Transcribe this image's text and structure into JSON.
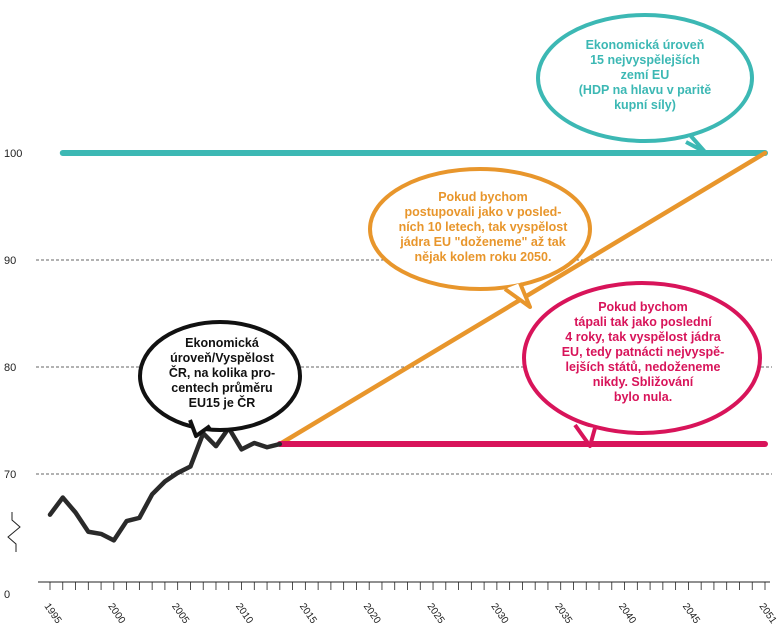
{
  "chart_data": {
    "type": "line",
    "yticks": [
      "0",
      "70",
      "80",
      "90",
      "100"
    ],
    "xticks": [
      "1995",
      "2000",
      "2005",
      "2010",
      "2015",
      "2020",
      "2025",
      "2030",
      "2035",
      "2040",
      "2045",
      "2051"
    ],
    "xlim": [
      1995,
      2051
    ],
    "grid": "dashed horizontal at 70, 80, 90",
    "axis_break": true,
    "series": [
      {
        "color": "#2a2a2a",
        "x": [
          1995,
          1996,
          1997,
          1998,
          1999,
          2000,
          2001,
          2002,
          2003,
          2004,
          2005,
          2006,
          2007,
          2008,
          2009,
          2010,
          2011,
          2012,
          2013
        ],
        "y": [
          66.2,
          67.8,
          66.4,
          64.6,
          64.4,
          63.8,
          65.6,
          65.9,
          68.1,
          69.3,
          70.1,
          70.7,
          73.8,
          72.6,
          74.3,
          72.3,
          72.9,
          72.5,
          72.8
        ]
      },
      {
        "color": "#e8962c",
        "x": [
          2013,
          2051
        ],
        "y": [
          72.8,
          100
        ]
      },
      {
        "color": "#d8145a",
        "x": [
          2013,
          2051
        ],
        "y": [
          72.8,
          72.8
        ]
      },
      {
        "color": "#3cb8b4",
        "x": [
          1996,
          2051
        ],
        "y": [
          100,
          100
        ]
      }
    ],
    "annotations": [
      {
        "id": "teal",
        "text": "Ekonomická úroveň\n15 nejvyspělejších\nzemí EU\n(HDP na hlavu v paritě\nkupní síly)",
        "color": "#3cb8b4"
      },
      {
        "id": "orange",
        "text": "Pokud bychom\npostupovali jako v posled-\nních 10 letech, tak vyspělost\njádra EU \"doženeme\" až tak\nnějak kolem roku 2050.",
        "color": "#e8962c"
      },
      {
        "id": "pink",
        "text": "Pokud bychom\ntápali tak jako poslední\n4 roky, tak vyspělost jádra\nEU, tedy patnácti nejvyspě-\nlejších států, nedoženeme\nnikdy. Sbližování\nbylo nula.",
        "color": "#d8145a"
      },
      {
        "id": "black",
        "text": "Ekonomická\núroveň/Vyspělost\nČR, na kolika pro-\ncentech průměru\nEU15 je ČR",
        "color": "#111111"
      }
    ]
  }
}
